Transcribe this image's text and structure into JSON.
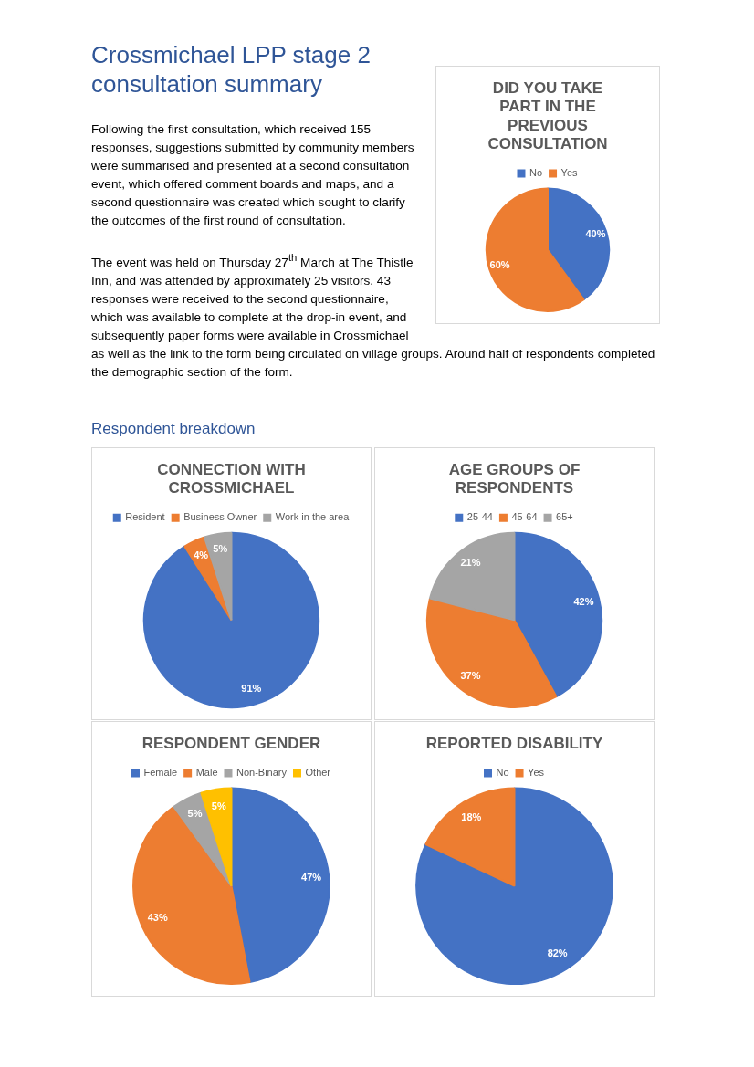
{
  "chart_data": [
    {
      "type": "other",
      "title": "Crossmichael LPP stage 2 consultation summary",
      "subtitle": "Respondent breakdown",
      "annotations": [
        "Following the first consultation, which received 155 responses, suggestions submitted by community members were summarised and presented at a second consultation event, which offered comment boards and maps, and a second questionnaire was created which sought to clarify the outcomes of the first round of consultation.",
        "The event was held on Thursday 27$^{th}$ March at The Thistle Inn, and was attended by approximately 25 visitors. 43 responses were received to the second questionnaire, which was available to complete at the drop-in event, and subsequently paper forms were available in Crossmichael as well as the link to the form being circulated on village groups. Around half of respondents completed the demographic section of the form."
      ]
    },
    {
      "type": "pie",
      "title": "DID YOU TAKE PART IN THE PREVIOUS CONSULTATION",
      "categories": [
        "No",
        "Yes"
      ],
      "values": [
        40,
        60
      ],
      "colors": [
        "#4472c4",
        "#ed7d31"
      ],
      "value_labels": [
        "40%",
        "60%"
      ],
      "legend": "top"
    },
    {
      "type": "pie",
      "title": "CONNECTION WITH CROSSMICHAEL",
      "categories": [
        "Resident",
        "Business Owner",
        "Work in the area"
      ],
      "values": [
        91,
        4,
        5
      ],
      "colors": [
        "#4472c4",
        "#ed7d31",
        "#a5a5a5"
      ],
      "value_labels": [
        "91%",
        "4%",
        "5%"
      ],
      "legend": "top"
    },
    {
      "type": "pie",
      "title": "AGE GROUPS OF RESPONDENTS",
      "categories": [
        "25-44",
        "45-64",
        "65+"
      ],
      "values": [
        42,
        37,
        21
      ],
      "colors": [
        "#4472c4",
        "#ed7d31",
        "#a5a5a5"
      ],
      "value_labels": [
        "42%",
        "37%",
        "21%"
      ],
      "legend": "top"
    },
    {
      "type": "pie",
      "title": "RESPONDENT GENDER",
      "categories": [
        "Female",
        "Male",
        "Non-Binary",
        "Other"
      ],
      "values": [
        47,
        43,
        5,
        5
      ],
      "colors": [
        "#4472c4",
        "#ed7d31",
        "#a5a5a5",
        "#ffc000"
      ],
      "value_labels": [
        "47%",
        "43%",
        "5%",
        "5%"
      ],
      "legend": "top"
    },
    {
      "type": "pie",
      "title": "REPORTED DISABILITY",
      "categories": [
        "No",
        "Yes"
      ],
      "values": [
        82,
        18
      ],
      "colors": [
        "#4472c4",
        "#ed7d31"
      ],
      "value_labels": [
        "82%",
        "18%"
      ],
      "legend": "top"
    }
  ]
}
